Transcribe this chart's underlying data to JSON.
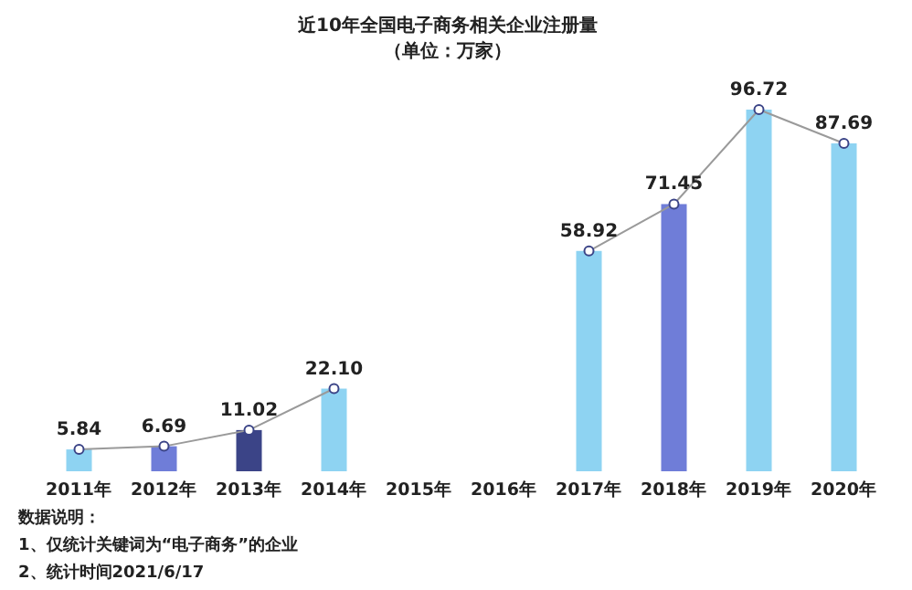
{
  "chart_data": {
    "type": "bar",
    "title": "近10年全国电子商务相关企业注册量",
    "subtitle": "（单位：万家）",
    "categories": [
      "2011年",
      "2012年",
      "2013年",
      "2014年",
      "2015年",
      "2016年",
      "2017年",
      "2018年",
      "2019年",
      "2020年"
    ],
    "series": [
      {
        "colors": [
          "#8ed3f2",
          "#6f7dd8",
          "#3b4487",
          "#8ed3f2",
          null,
          null,
          "#8ed3f2",
          "#6f7dd8",
          "#8ed3f2",
          "#8ed3f2"
        ],
        "values": [
          5.84,
          6.69,
          11.02,
          22.1,
          null,
          null,
          58.92,
          71.45,
          96.72,
          87.69
        ]
      },
      {
        "type": "line",
        "color": "#9a9a9a",
        "values": [
          5.84,
          6.69,
          11.02,
          22.1,
          null,
          null,
          58.92,
          71.45,
          96.72,
          87.69
        ],
        "value_labels": [
          "5.84",
          "6.69",
          "11.02",
          "22.10",
          null,
          null,
          "58.92",
          "71.45",
          "96.72",
          "87.69"
        ]
      }
    ],
    "marker": "circle",
    "annotations": [
      "数据说明：",
      "1、仅统计关键词为“电子商务”的企业",
      "2、统计时间2021/6/17"
    ]
  }
}
